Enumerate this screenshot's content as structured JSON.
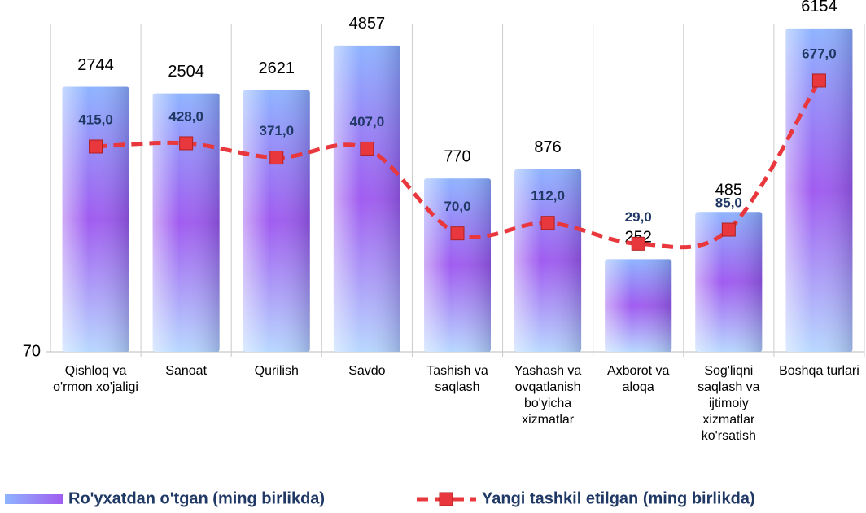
{
  "chart_data": {
    "type": "bar",
    "categories": [
      "Qishloq va o'rmon xo'jaligi",
      "Sanoat",
      "Qurilish",
      "Savdo",
      "Tashish va saqlash",
      "Yashash va ovqatlanish bo'yicha xizmatlar",
      "Axborot va aloqa",
      "Sog'liqni saqlash va ijtimoiy xizmatlar ko'rsatish",
      "Boshqa turlari"
    ],
    "series": [
      {
        "name": "Ro'yxatdan o'tgan (ming birlikda)",
        "type": "bar",
        "color": "#9b6bf0",
        "values": [
          2744,
          2504,
          2621,
          4857,
          770,
          876,
          252,
          485,
          6154
        ]
      },
      {
        "name": "Yangi tashkil etilgan (ming birlikda)",
        "type": "line",
        "axis": "y2",
        "color": "#e8383d",
        "values": [
          415,
          428,
          371,
          407,
          70,
          112,
          29,
          85,
          677
        ],
        "value_labels": [
          "415,0",
          "428,0",
          "371,0",
          "407,0",
          "70,0",
          "112,0",
          "29,0",
          "85,0",
          "677,0"
        ]
      }
    ],
    "ylim": [
      70,
      6500
    ],
    "yticks": [
      70
    ],
    "log_scale": true,
    "y2lim": [
      -400,
      900
    ],
    "legend": "bottom"
  }
}
